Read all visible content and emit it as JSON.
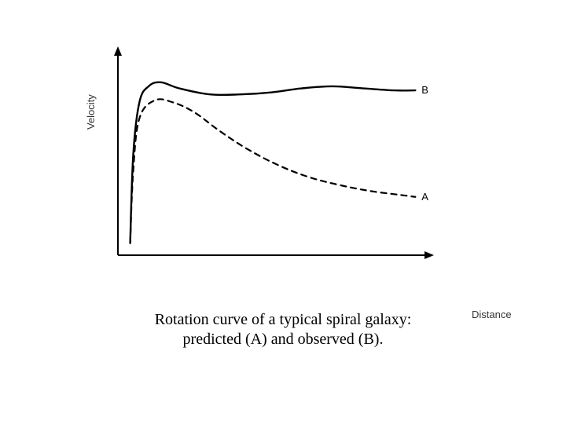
{
  "chart": {
    "type": "line",
    "background_color": "#ffffff",
    "axis_color": "#000000",
    "axis_stroke_width": 2,
    "arrowheads": true,
    "xlabel": "Distance",
    "ylabel": "Velocity",
    "label_fontsize": 13,
    "label_color": "#333333",
    "xlim": [
      0,
      100
    ],
    "ylim": [
      0,
      100
    ],
    "series": {
      "A": {
        "label": "A",
        "color": "#000000",
        "stroke_width": 2.2,
        "dash": "7,6",
        "points": [
          [
            4,
            6
          ],
          [
            5,
            42
          ],
          [
            7,
            68
          ],
          [
            12,
            77
          ],
          [
            18,
            76
          ],
          [
            25,
            71
          ],
          [
            33,
            62
          ],
          [
            42,
            53
          ],
          [
            52,
            45
          ],
          [
            62,
            39
          ],
          [
            72,
            35
          ],
          [
            82,
            32
          ],
          [
            92,
            30
          ],
          [
            97,
            29
          ]
        ]
      },
      "B": {
        "label": "B",
        "color": "#000000",
        "stroke_width": 2.4,
        "dash": "none",
        "points": [
          [
            4,
            6
          ],
          [
            5,
            50
          ],
          [
            7,
            76
          ],
          [
            10,
            84
          ],
          [
            14,
            86
          ],
          [
            20,
            83
          ],
          [
            30,
            80
          ],
          [
            40,
            80
          ],
          [
            50,
            81
          ],
          [
            60,
            83
          ],
          [
            70,
            84
          ],
          [
            80,
            83
          ],
          [
            90,
            82
          ],
          [
            97,
            82
          ]
        ]
      }
    },
    "series_label_fontsize": 13,
    "caption_lines": [
      "Rotation curve of a typical spiral galaxy:",
      "predicted (A) and observed (B)."
    ],
    "caption_fontsize": 20,
    "caption_font": "Times New Roman"
  }
}
